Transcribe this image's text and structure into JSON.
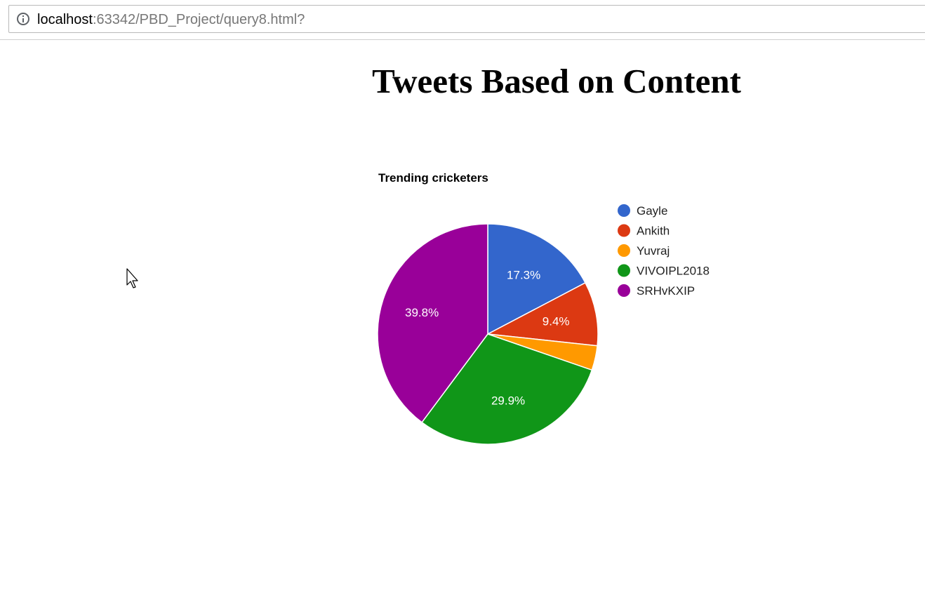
{
  "browser": {
    "url_host": "localhost",
    "url_rest": ":63342/PBD_Project/query8.html?"
  },
  "page": {
    "title": "Tweets Based on Content"
  },
  "chart_data": {
    "type": "pie",
    "title": "Trending cricketers",
    "legend_position": "right",
    "categories": [
      "Gayle",
      "Ankith",
      "Yuvraj",
      "VIVOIPL2018",
      "SRHvKXIP"
    ],
    "values": [
      17.3,
      9.4,
      3.6,
      29.9,
      39.8
    ],
    "labels": [
      "17.3%",
      "9.4%",
      "",
      "29.9%",
      "39.8%"
    ],
    "colors": [
      "#3366cc",
      "#dc3912",
      "#ff9900",
      "#109618",
      "#990099"
    ]
  }
}
